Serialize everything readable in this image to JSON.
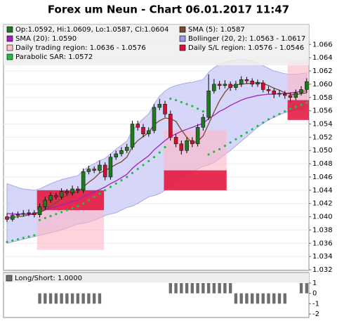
{
  "chart_data": [
    {
      "type": "candlestick",
      "title": "Forex um Neun - Chart 06.01.2017 11:47",
      "legend": [
        {
          "label": "Op:1.0592, Hi:1.0609, Lo:1.0587, Cl:1.0604",
          "color": "#1f7a1f"
        },
        {
          "label": "SMA (5): 1.0587",
          "color": "#7a4a2a"
        },
        {
          "label": "SMA (20): 1.0590",
          "color": "#a020c0"
        },
        {
          "label": "Bollinger (20, 2): 1.0563 - 1.0617",
          "color": "#9a9ae8"
        },
        {
          "label": "Daily trading region: 1.0636 - 1.0576",
          "color": "#ffc0c8"
        },
        {
          "label": "Daily S/L region: 1.0576 - 1.0546",
          "color": "#e0103a"
        },
        {
          "label": "Parabolic SAR: 1.0572",
          "color": "#22bb44"
        }
      ],
      "up_color": "#1f7a1f",
      "down_color": "#cc1133",
      "ohlc": [
        [
          1.04,
          1.0405,
          1.0392,
          1.0396
        ],
        [
          1.0396,
          1.0407,
          1.0393,
          1.0402
        ],
        [
          1.0402,
          1.0408,
          1.0398,
          1.0404
        ],
        [
          1.0404,
          1.041,
          1.04,
          1.0405
        ],
        [
          1.0405,
          1.0411,
          1.0401,
          1.0406
        ],
        [
          1.0406,
          1.041,
          1.0399,
          1.0403
        ],
        [
          1.0403,
          1.042,
          1.0399,
          1.0415
        ],
        [
          1.0415,
          1.043,
          1.0411,
          1.0425
        ],
        [
          1.0425,
          1.0437,
          1.0421,
          1.0432
        ],
        [
          1.0432,
          1.0436,
          1.0426,
          1.043
        ],
        [
          1.043,
          1.0443,
          1.0426,
          1.0438
        ],
        [
          1.0438,
          1.0442,
          1.0432,
          1.0436
        ],
        [
          1.0436,
          1.0447,
          1.0432,
          1.0442
        ],
        [
          1.0442,
          1.0446,
          1.0436,
          1.044
        ],
        [
          1.044,
          1.0473,
          1.0436,
          1.0468
        ],
        [
          1.0468,
          1.0477,
          1.0464,
          1.0472
        ],
        [
          1.0472,
          1.0476,
          1.0466,
          1.047
        ],
        [
          1.047,
          1.0485,
          1.0466,
          1.0478
        ],
        [
          1.0478,
          1.0482,
          1.0455,
          1.046
        ],
        [
          1.046,
          1.0495,
          1.0456,
          1.049
        ],
        [
          1.049,
          1.05,
          1.0486,
          1.0495
        ],
        [
          1.0495,
          1.0505,
          1.0491,
          1.05
        ],
        [
          1.05,
          1.051,
          1.0496,
          1.0505
        ],
        [
          1.0505,
          1.0545,
          1.0501,
          1.054
        ],
        [
          1.054,
          1.0545,
          1.053,
          1.0535
        ],
        [
          1.0535,
          1.054,
          1.052,
          1.0525
        ],
        [
          1.0525,
          1.0535,
          1.0521,
          1.053
        ],
        [
          1.053,
          1.057,
          1.0526,
          1.0565
        ],
        [
          1.0565,
          1.0578,
          1.0561,
          1.057
        ],
        [
          1.057,
          1.0575,
          1.055,
          1.0555
        ],
        [
          1.0555,
          1.056,
          1.0515,
          1.052
        ],
        [
          1.052,
          1.0525,
          1.0505,
          1.051
        ],
        [
          1.051,
          1.0515,
          1.0494,
          1.05
        ],
        [
          1.05,
          1.052,
          1.0496,
          1.0515
        ],
        [
          1.0515,
          1.052,
          1.0505,
          1.051
        ],
        [
          1.051,
          1.054,
          1.0506,
          1.0535
        ],
        [
          1.0535,
          1.0555,
          1.053,
          1.055
        ],
        [
          1.055,
          1.0615,
          1.0546,
          1.059
        ],
        [
          1.059,
          1.0608,
          1.0586,
          1.06
        ],
        [
          1.06,
          1.0605,
          1.0592,
          1.0598
        ],
        [
          1.0598,
          1.0606,
          1.0594,
          1.06
        ],
        [
          1.06,
          1.0604,
          1.059,
          1.0595
        ],
        [
          1.0595,
          1.0605,
          1.0591,
          1.06
        ],
        [
          1.06,
          1.0612,
          1.0596,
          1.0607
        ],
        [
          1.0607,
          1.0611,
          1.0601,
          1.0605
        ],
        [
          1.0605,
          1.0609,
          1.0596,
          1.06
        ],
        [
          1.06,
          1.0607,
          1.0596,
          1.0602
        ],
        [
          1.0602,
          1.0606,
          1.0588,
          1.0592
        ],
        [
          1.0592,
          1.0597,
          1.0586,
          1.059
        ],
        [
          1.059,
          1.0594,
          1.0579,
          1.0585
        ],
        [
          1.0585,
          1.0591,
          1.0581,
          1.0586
        ],
        [
          1.0586,
          1.059,
          1.0578,
          1.0583
        ],
        [
          1.0583,
          1.0587,
          1.0574,
          1.058
        ],
        [
          1.058,
          1.0592,
          1.0576,
          1.0587
        ],
        [
          1.0587,
          1.0597,
          1.0583,
          1.0592
        ],
        [
          1.0592,
          1.0609,
          1.0587,
          1.0604
        ]
      ],
      "sma5": [
        1.0398,
        1.0399,
        1.04,
        1.0401,
        1.0403,
        1.0404,
        1.0407,
        1.0411,
        1.0416,
        1.0421,
        1.0428,
        1.0432,
        1.0436,
        1.0437,
        1.0445,
        1.0452,
        1.0458,
        1.0466,
        1.047,
        1.0474,
        1.0479,
        1.0483,
        1.049,
        1.0506,
        1.0515,
        1.0521,
        1.0527,
        1.0539,
        1.0545,
        1.0549,
        1.0548,
        1.0544,
        1.0531,
        1.052,
        1.0511,
        1.0514,
        1.0522,
        1.054,
        1.0558,
        1.0575,
        1.0588,
        1.0597,
        1.0599,
        1.06,
        1.0601,
        1.0601,
        1.0603,
        1.0601,
        1.0598,
        1.0594,
        1.0591,
        1.0587,
        1.0585,
        1.0584,
        1.0586,
        1.0587
      ],
      "sma20": [
        1.0405,
        1.0404,
        1.0404,
        1.0404,
        1.0404,
        1.0405,
        1.0407,
        1.041,
        1.0413,
        1.0415,
        1.0418,
        1.042,
        1.0423,
        1.0425,
        1.043,
        1.0434,
        1.0438,
        1.0441,
        1.0445,
        1.045,
        1.0454,
        1.0459,
        1.0464,
        1.0473,
        1.048,
        1.0486,
        1.0492,
        1.0501,
        1.0508,
        1.0515,
        1.0521,
        1.0525,
        1.0529,
        1.0532,
        1.0535,
        1.0538,
        1.0541,
        1.0548,
        1.0553,
        1.0559,
        1.0563,
        1.0568,
        1.0572,
        1.0576,
        1.0579,
        1.0581,
        1.0583,
        1.0584,
        1.0585,
        1.0585,
        1.0586,
        1.0586,
        1.0587,
        1.0588,
        1.0589,
        1.059
      ],
      "bollinger_upper": [
        1.045,
        1.0447,
        1.0444,
        1.0442,
        1.0441,
        1.044,
        1.0442,
        1.0446,
        1.045,
        1.0453,
        1.0456,
        1.0458,
        1.046,
        1.0462,
        1.047,
        1.0476,
        1.048,
        1.0485,
        1.0488,
        1.0495,
        1.0502,
        1.0508,
        1.0514,
        1.053,
        1.054,
        1.0548,
        1.0555,
        1.057,
        1.0582,
        1.059,
        1.0595,
        1.0598,
        1.06,
        1.0602,
        1.0603,
        1.0605,
        1.0607,
        1.0618,
        1.0625,
        1.063,
        1.0633,
        1.0635,
        1.0637,
        1.0638,
        1.0637,
        1.0635,
        1.0632,
        1.0628,
        1.0624,
        1.062,
        1.0618,
        1.0616,
        1.0615,
        1.0615,
        1.0616,
        1.0617
      ],
      "bollinger_lower": [
        1.036,
        1.0362,
        1.0364,
        1.0366,
        1.0368,
        1.037,
        1.0372,
        1.0374,
        1.0376,
        1.0378,
        1.038,
        1.0383,
        1.0386,
        1.0389,
        1.039,
        1.0392,
        1.0395,
        1.0398,
        1.0402,
        1.0404,
        1.0406,
        1.041,
        1.0414,
        1.0416,
        1.042,
        1.0425,
        1.043,
        1.0432,
        1.0435,
        1.044,
        1.0447,
        1.0452,
        1.0458,
        1.0463,
        1.0468,
        1.0472,
        1.0476,
        1.0478,
        1.0482,
        1.0488,
        1.0494,
        1.05,
        1.0507,
        1.0514,
        1.0521,
        1.0528,
        1.0535,
        1.0541,
        1.0546,
        1.055,
        1.0554,
        1.0557,
        1.0559,
        1.0561,
        1.0562,
        1.0563
      ],
      "sar": [
        1.0362,
        1.0364,
        1.0366,
        1.0368,
        1.037,
        1.0372,
        1.0395,
        1.0398,
        1.0401,
        1.0404,
        1.0407,
        1.041,
        1.0413,
        1.0416,
        1.042,
        1.0425,
        1.043,
        1.0435,
        1.044,
        1.0445,
        1.045,
        1.0455,
        1.046,
        1.0466,
        1.0472,
        1.0478,
        1.0484,
        1.049,
        1.0497,
        1.0505,
        1.0578,
        1.0576,
        1.0573,
        1.057,
        1.0567,
        1.0563,
        1.0559,
        1.0494,
        1.0498,
        1.0502,
        1.0507,
        1.0512,
        1.0517,
        1.0522,
        1.0527,
        1.0532,
        1.0537,
        1.0542,
        1.0547,
        1.0551,
        1.0555,
        1.0559,
        1.0563,
        1.0566,
        1.0569,
        1.0572
      ],
      "regions": [
        {
          "from": 5.5,
          "to": 17.8,
          "trading": [
            1.044,
            1.035
          ],
          "sl": [
            1.044,
            1.041
          ]
        },
        {
          "from": 28.8,
          "to": 40.3,
          "trading": [
            1.053,
            1.044
          ],
          "sl": [
            1.047,
            1.044
          ]
        },
        {
          "from": 51.5,
          "to": 55.4,
          "trading": [
            1.0636,
            1.0576
          ],
          "sl": [
            1.0576,
            1.0546
          ]
        }
      ],
      "ylim": [
        1.0319,
        1.069
      ],
      "yticks": [
        {
          "value": 1.032,
          "label": "1.032"
        },
        {
          "value": 1.034,
          "label": "1.034"
        },
        {
          "value": 1.036,
          "label": "1.036"
        },
        {
          "value": 1.038,
          "label": "1.038"
        },
        {
          "value": 1.04,
          "label": "1.040"
        },
        {
          "value": 1.042,
          "label": "1.042"
        },
        {
          "value": 1.044,
          "label": "1.044"
        },
        {
          "value": 1.046,
          "label": "1.046"
        },
        {
          "value": 1.048,
          "label": "1.048"
        },
        {
          "value": 1.05,
          "label": "1.050"
        },
        {
          "value": 1.052,
          "label": "1.052"
        },
        {
          "value": 1.054,
          "label": "1.054"
        },
        {
          "value": 1.056,
          "label": "1.056"
        },
        {
          "value": 1.058,
          "label": "1.058"
        },
        {
          "value": 1.06,
          "label": "1.060"
        },
        {
          "value": 1.062,
          "label": "1.062"
        },
        {
          "value": 1.064,
          "label": "1.064"
        },
        {
          "value": 1.066,
          "label": "1.066"
        }
      ],
      "grid": true
    },
    {
      "type": "bar",
      "title": "Long/Short: 1.0000",
      "color": "#6e6e6e",
      "values": [
        0,
        0,
        0,
        0,
        0,
        0,
        -1,
        -1,
        -1,
        -1,
        -1,
        -1,
        -1,
        -1,
        -1,
        -1,
        -1,
        -1,
        0,
        0,
        0,
        0,
        0,
        0,
        0,
        0,
        0,
        0,
        0,
        0,
        1,
        1,
        1,
        1,
        1,
        1,
        1,
        1,
        1,
        1,
        1,
        1,
        -1,
        -1,
        -1,
        -1,
        -1,
        -1,
        -1,
        -1,
        -1,
        -1,
        0,
        0,
        1,
        1
      ],
      "ylim": [
        -2.34,
        2.02
      ],
      "yticks": [
        1,
        0,
        -1,
        -2
      ]
    }
  ]
}
